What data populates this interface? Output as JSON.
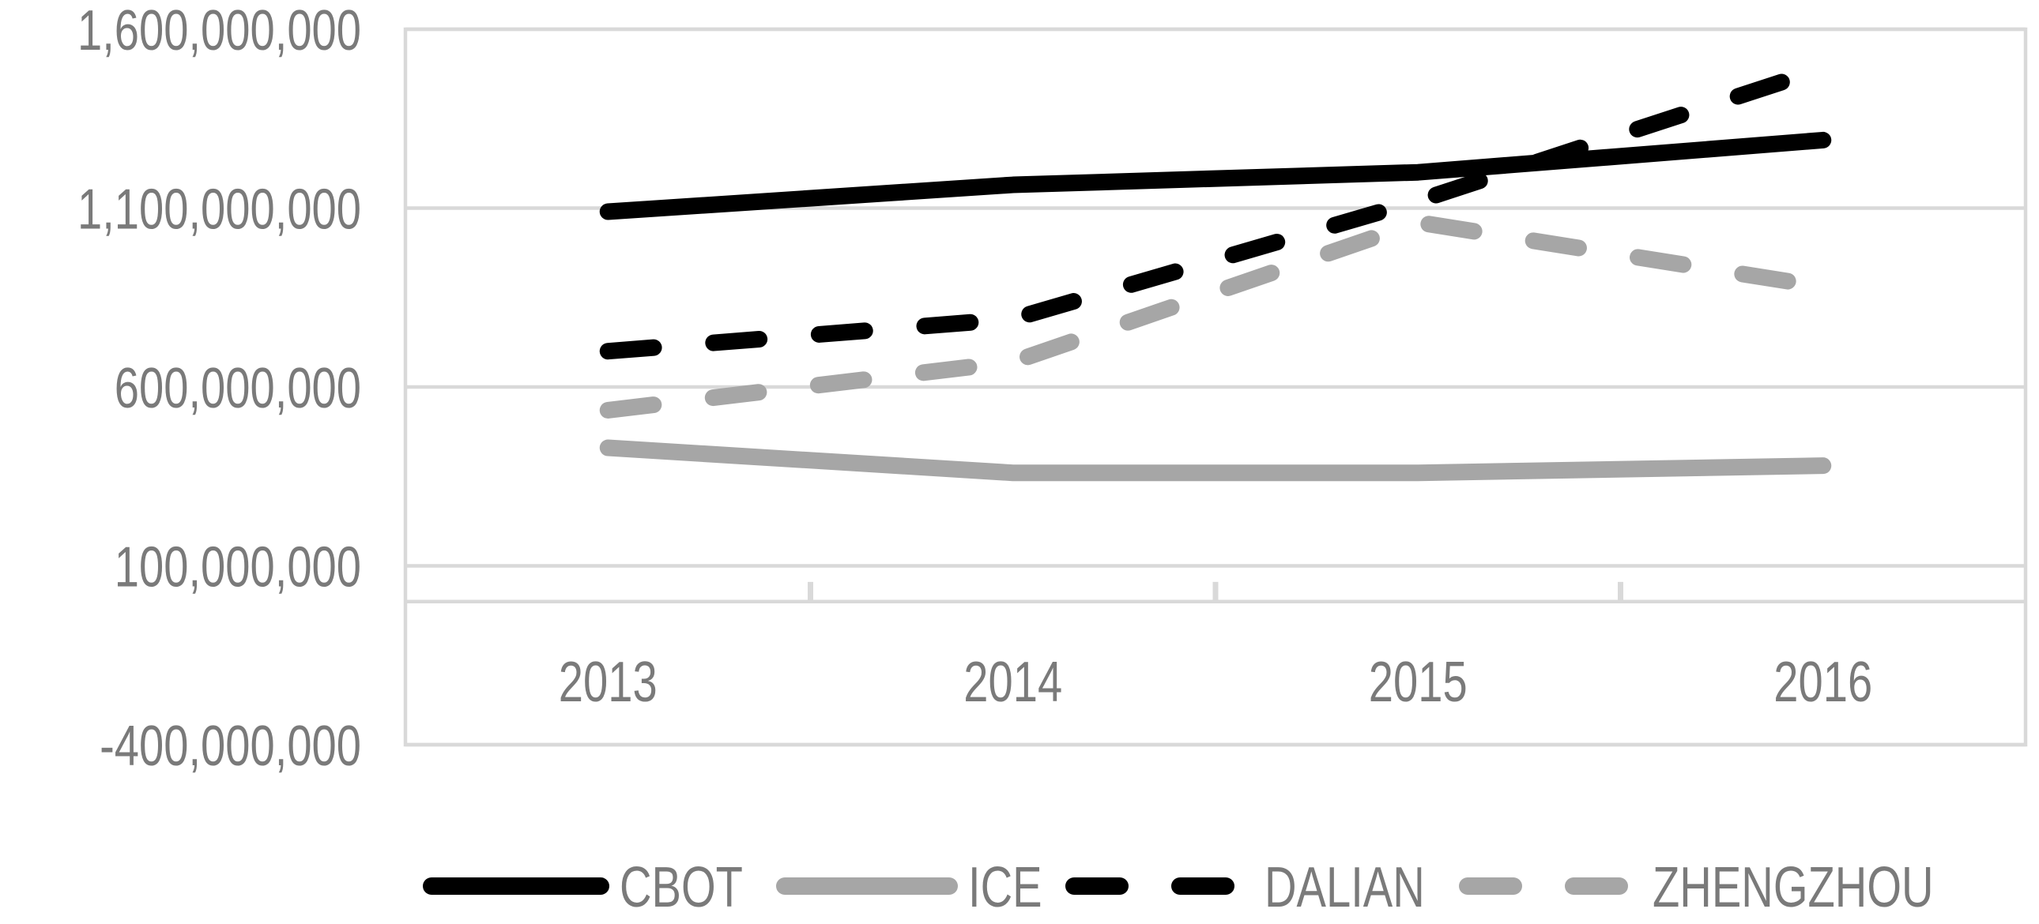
{
  "chart_data": {
    "type": "line",
    "title": "",
    "xlabel": "",
    "ylabel": "",
    "categories": [
      "2013",
      "2014",
      "2015",
      "2016"
    ],
    "series": [
      {
        "name": "CBOT",
        "values": [
          1090000000,
          1165000000,
          1200000000,
          1290000000
        ],
        "color": "#000000",
        "dash": "solid"
      },
      {
        "name": "ICE",
        "values": [
          430000000,
          360000000,
          360000000,
          380000000
        ],
        "color": "#a6a6a6",
        "dash": "solid"
      },
      {
        "name": "DALIAN",
        "values": [
          700000000,
          790000000,
          1120000000,
          1490000000
        ],
        "color": "#000000",
        "dash": "dashed"
      },
      {
        "name": "ZHENGZHOU",
        "values": [
          535000000,
          670000000,
          1060000000,
          880000000
        ],
        "color": "#a6a6a6",
        "dash": "dashed"
      }
    ],
    "ylim": [
      -400000000,
      1600000000
    ],
    "ytick_values": [
      1600000000,
      1100000000,
      600000000,
      100000000,
      -400000000
    ],
    "yticks": [
      "1,600,000,000",
      "1,100,000,000",
      "600,000,000",
      "100,000,000",
      "-400,000,000"
    ],
    "grid": true,
    "legend_position": "bottom-center",
    "colors": {
      "gridline": "#d9d9d9",
      "plot_border": "#d9d9d9",
      "axis_text": "#7a7a7a",
      "background": "#ffffff"
    }
  }
}
